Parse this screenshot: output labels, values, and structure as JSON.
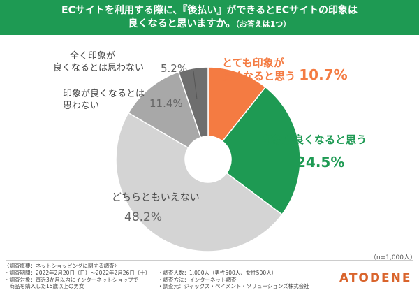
{
  "banner": {
    "line1": "ECサイトを利用する際に、『後払い』ができるとECサイトの印象は",
    "line2_main": "良くなると思いますか。",
    "line2_note": "（お答えは1つ）"
  },
  "chart_data": {
    "type": "pie",
    "donut": true,
    "slices": [
      {
        "label": "とても印象が良くなると思う",
        "value": 10.7,
        "pct_text": "10.7%",
        "color": "#f47b42"
      },
      {
        "label": "印象が良くなると思う",
        "value": 24.5,
        "pct_text": "24.5%",
        "color": "#1e9a53"
      },
      {
        "label": "どちらともいえない",
        "value": 48.2,
        "pct_text": "48.2%",
        "color": "#d4d4d4"
      },
      {
        "label": "印象が良くなるとは思わない",
        "value": 11.4,
        "pct_text": "11.4%",
        "color": "#a8a8a8"
      },
      {
        "label": "全く印象が良くなるとは思わない",
        "value": 5.2,
        "pct_text": "5.2%",
        "color": "#6e6e6e"
      }
    ]
  },
  "labels": {
    "s0_line1": "とても印象が",
    "s0_line2": "良くなると思う",
    "s0_pct": "10.7%",
    "s1_name": "印象が良くなると思う",
    "s1_pct": "24.5%",
    "s2_name": "どちらともいえない",
    "s2_pct": "48.2%",
    "s3_line1": "印象が良くなるとは",
    "s3_line2": "思わない",
    "s3_pct": "11.4%",
    "s4_line1": "全く印象が",
    "s4_line2": "良くなるとは思わない",
    "s4_pct": "5.2%"
  },
  "sample_size": "（n=1,000人）",
  "footer": {
    "title": "〈調査概要：ネットショッピングに関する調査〉",
    "period": "・調査期間：2022年2月20日（日）〜2022年2月26日（土）",
    "target1": "・調査対象：直近3か月以内にインターネットショップで",
    "target2": "　商品を購入した15歳以上の男女",
    "count": "・調査人数：1,000人（男性500人、女性500人）",
    "method": "・調査方法：インターネット調査",
    "source": "・調査元：ジャックス・ペイメント・ソリューションズ株式会社"
  },
  "logo": "ATODENE",
  "colors": {
    "banner": "#1e9a53",
    "orange": "#f47b42",
    "green": "#1e9a53"
  }
}
